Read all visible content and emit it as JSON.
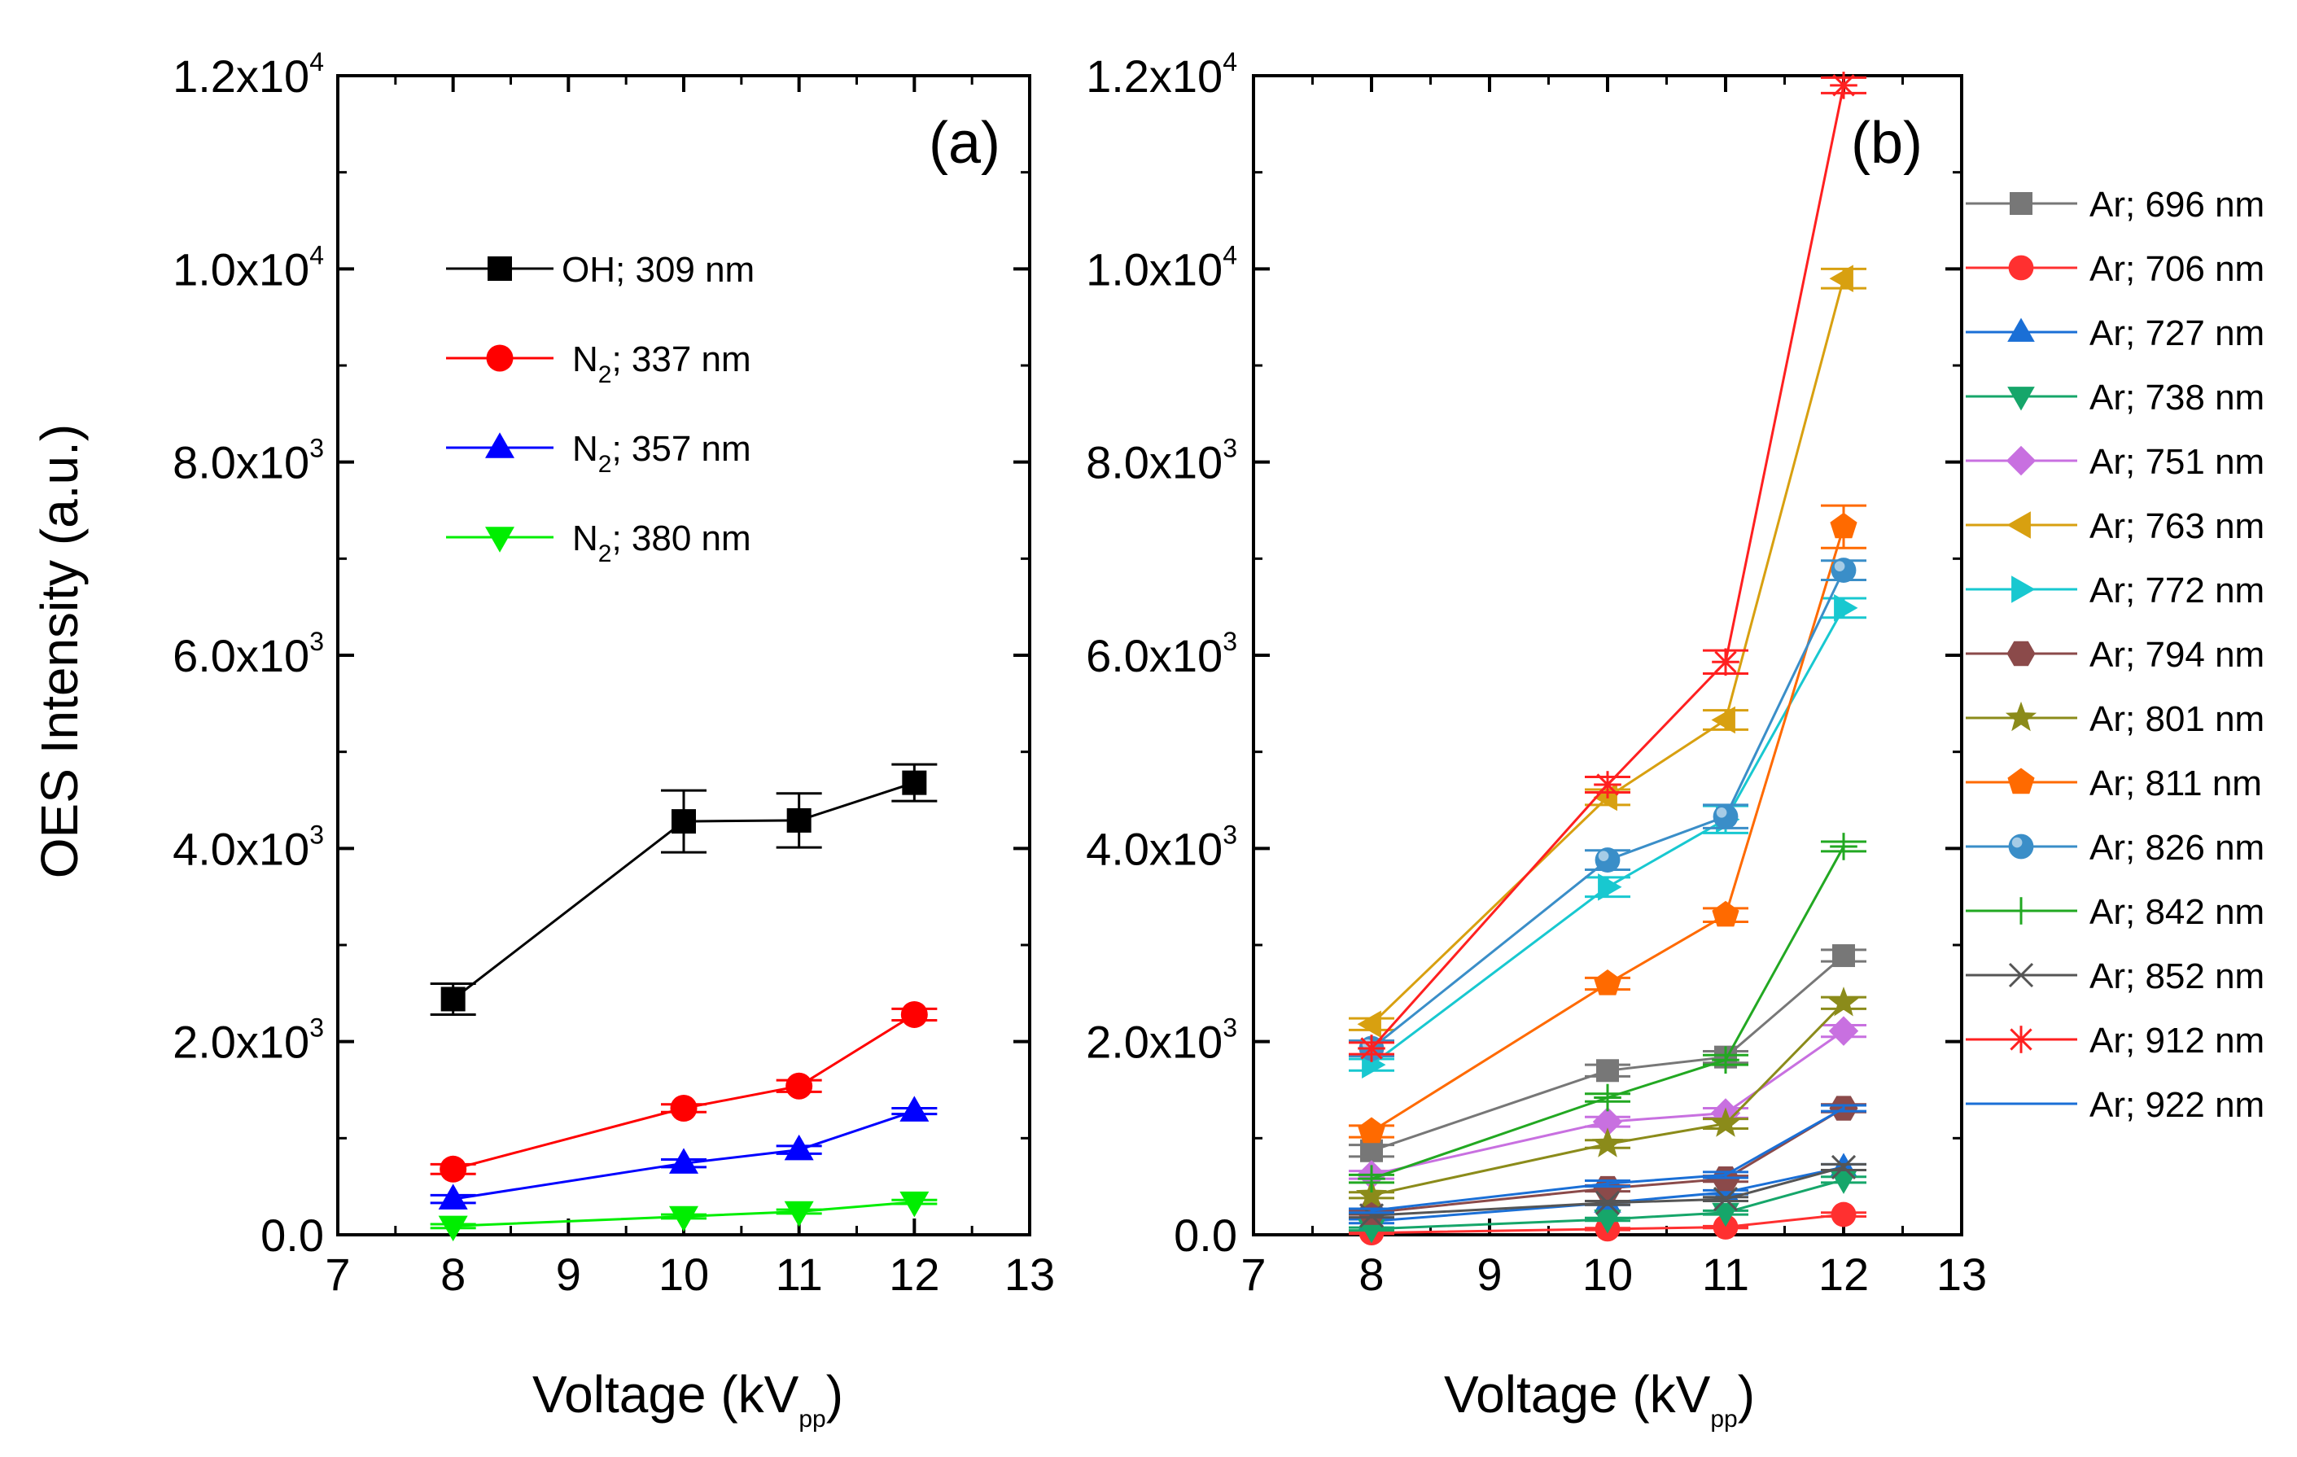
{
  "figure": {
    "ylabel": "OES Intensity (a.u.)",
    "xlabel_main": "Voltage (kV",
    "xlabel_sub": "pp",
    "xlabel_close": ")"
  },
  "chart_data": [
    {
      "type": "line",
      "panel_label": "(a)",
      "xlim": [
        7,
        13
      ],
      "ylim": [
        0,
        12000
      ],
      "x_ticks": [
        "7",
        "8",
        "9",
        "10",
        "11",
        "12",
        "13"
      ],
      "y_ticks": [
        {
          "value": 0,
          "text": "0.0"
        },
        {
          "value": 2000,
          "mantissa": "2.0x10",
          "exp": "3"
        },
        {
          "value": 4000,
          "mantissa": "4.0x10",
          "exp": "3"
        },
        {
          "value": 6000,
          "mantissa": "6.0x10",
          "exp": "3"
        },
        {
          "value": 8000,
          "mantissa": "8.0x10",
          "exp": "3"
        },
        {
          "value": 10000,
          "mantissa": "1.0x10",
          "exp": "4"
        },
        {
          "value": 12000,
          "mantissa": "1.2x10",
          "exp": "4"
        }
      ],
      "x": [
        8,
        10,
        11,
        12
      ],
      "series": [
        {
          "name": "OH; 309 nm",
          "species": "OH",
          "sub": "",
          "wl": "; 309 nm",
          "color": "#000000",
          "marker": "square",
          "values": [
            2440,
            4280,
            4290,
            4680
          ],
          "errors": [
            160,
            320,
            280,
            190
          ]
        },
        {
          "name": "N2; 337 nm",
          "species": "N",
          "sub": "2",
          "wl": "; 337 nm",
          "color": "#ff0000",
          "marker": "circle",
          "values": [
            680,
            1310,
            1540,
            2280
          ],
          "errors": [
            50,
            40,
            60,
            60
          ]
        },
        {
          "name": "N2; 357 nm",
          "species": "N",
          "sub": "2",
          "wl": "; 357 nm",
          "color": "#0000ff",
          "marker": "triangle-up",
          "values": [
            370,
            740,
            880,
            1280
          ],
          "errors": [
            40,
            40,
            40,
            30
          ]
        },
        {
          "name": "N2; 380 nm",
          "species": "N",
          "sub": "2",
          "wl": "; 380 nm",
          "color": "#00ee00",
          "marker": "triangle-down",
          "values": [
            90,
            190,
            240,
            340
          ],
          "errors": [
            20,
            20,
            20,
            20
          ]
        }
      ]
    },
    {
      "type": "line",
      "panel_label": "(b)",
      "xlim": [
        7,
        13
      ],
      "ylim": [
        0,
        12000
      ],
      "x_ticks": [
        "7",
        "8",
        "9",
        "10",
        "11",
        "12",
        "13"
      ],
      "y_ticks": [
        {
          "value": 0,
          "text": "0.0"
        },
        {
          "value": 2000,
          "mantissa": "2.0x10",
          "exp": "3"
        },
        {
          "value": 4000,
          "mantissa": "4.0x10",
          "exp": "3"
        },
        {
          "value": 6000,
          "mantissa": "6.0x10",
          "exp": "3"
        },
        {
          "value": 8000,
          "mantissa": "8.0x10",
          "exp": "3"
        },
        {
          "value": 10000,
          "mantissa": "1.0x10",
          "exp": "4"
        },
        {
          "value": 12000,
          "mantissa": "1.2x10",
          "exp": "4"
        }
      ],
      "x": [
        8,
        10,
        11,
        12
      ],
      "series": [
        {
          "name": "Ar; 696 nm",
          "color": "#777777",
          "marker": "square",
          "values": [
            870,
            1700,
            1840,
            2890
          ],
          "errors": [
            60,
            60,
            60,
            60
          ]
        },
        {
          "name": "Ar; 706 nm",
          "color": "#ff3030",
          "marker": "circle",
          "values": [
            20,
            60,
            80,
            210
          ],
          "errors": [
            10,
            10,
            10,
            20
          ]
        },
        {
          "name": "Ar; 727 nm",
          "color": "#1a6fd6",
          "marker": "triangle-up",
          "values": [
            140,
            330,
            440,
            700
          ],
          "errors": [
            20,
            20,
            20,
            30
          ]
        },
        {
          "name": "Ar; 738 nm",
          "color": "#16a66a",
          "marker": "triangle-down",
          "values": [
            60,
            160,
            230,
            570
          ],
          "errors": [
            15,
            15,
            20,
            30
          ]
        },
        {
          "name": "Ar; 751 nm",
          "color": "#c870e0",
          "marker": "diamond",
          "values": [
            620,
            1170,
            1260,
            2110
          ],
          "errors": [
            40,
            50,
            50,
            60
          ]
        },
        {
          "name": "Ar; 763 nm",
          "color": "#d8a010",
          "marker": "triangle-left",
          "values": [
            2180,
            4530,
            5330,
            9900
          ],
          "errors": [
            60,
            80,
            100,
            100
          ]
        },
        {
          "name": "Ar; 772 nm",
          "color": "#18c8d0",
          "marker": "triangle-right",
          "values": [
            1760,
            3600,
            4300,
            6490
          ],
          "errors": [
            60,
            100,
            140,
            100
          ]
        },
        {
          "name": "Ar; 794 nm",
          "color": "#8b4a4a",
          "marker": "hexagon",
          "values": [
            230,
            480,
            580,
            1310
          ],
          "errors": [
            20,
            30,
            30,
            40
          ]
        },
        {
          "name": "Ar; 801 nm",
          "color": "#8b8b1a",
          "marker": "star",
          "values": [
            410,
            940,
            1150,
            2400
          ],
          "errors": [
            30,
            40,
            50,
            60
          ]
        },
        {
          "name": "Ar; 811 nm",
          "color": "#ff6a00",
          "marker": "pentagon",
          "values": [
            1070,
            2600,
            3310,
            7330
          ],
          "errors": [
            60,
            60,
            70,
            220
          ]
        },
        {
          "name": "Ar; 826 nm",
          "color": "#3a8ec8",
          "marker": "sphere",
          "values": [
            1930,
            3880,
            4330,
            6880
          ],
          "errors": [
            80,
            100,
            120,
            100
          ]
        },
        {
          "name": "Ar; 842 nm",
          "color": "#22a822",
          "marker": "plus",
          "values": [
            580,
            1420,
            1810,
            4020
          ],
          "errors": [
            40,
            40,
            50,
            50
          ]
        },
        {
          "name": "Ar; 852 nm",
          "color": "#555555",
          "marker": "cross",
          "values": [
            200,
            330,
            370,
            700
          ],
          "errors": [
            20,
            20,
            20,
            30
          ]
        },
        {
          "name": "Ar; 912 nm",
          "color": "#ff2020",
          "marker": "asterisk",
          "values": [
            1930,
            4660,
            5930,
            11900
          ],
          "errors": [
            60,
            80,
            120,
            80
          ]
        },
        {
          "name": "Ar; 922 nm",
          "color": "#1a6fd6",
          "marker": "none",
          "values": [
            250,
            530,
            620,
            1310
          ],
          "errors": [
            20,
            30,
            30,
            30
          ]
        }
      ]
    }
  ]
}
